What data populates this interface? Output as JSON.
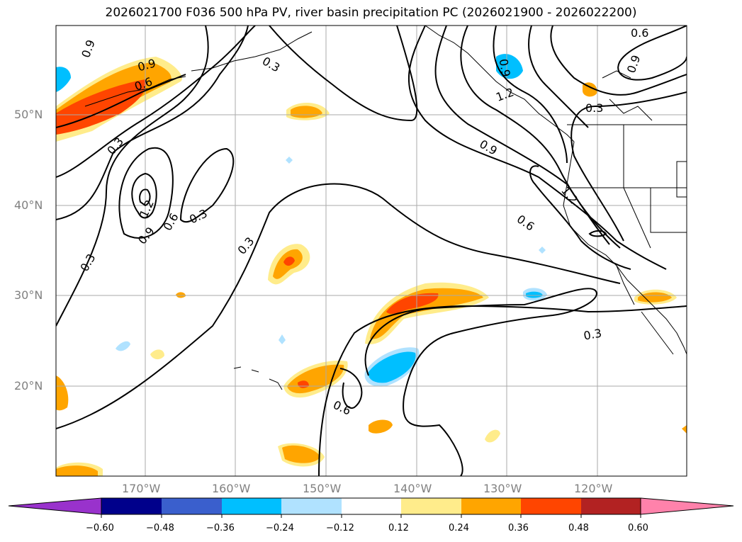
{
  "title": "2026021700 F036 500 hPa PV, river basin precipitation PC (2026021900 - 2026022200)",
  "lat_labels": [
    "50°N",
    "40°N",
    "30°N",
    "20°N"
  ],
  "lon_labels": [
    "170°W",
    "160°W",
    "150°W",
    "140°W",
    "130°W",
    "120°W"
  ],
  "colorbar": {
    "ticks": [
      "−0.60",
      "−0.48",
      "−0.36",
      "−0.24",
      "−0.12",
      "0.12",
      "0.24",
      "0.36",
      "0.48",
      "0.60"
    ],
    "colors": [
      "#9932cc",
      "#00008b",
      "#3a5fcd",
      "#00bfff",
      "#b0e2ff",
      "#ffffff",
      "#ffec8b",
      "#ffa500",
      "#ff4500",
      "#b22222",
      "#ff82ab"
    ]
  },
  "contour_labels": [
    "0.3",
    "0.6",
    "0.9",
    "1.2"
  ],
  "fill_colors": {
    "light_yellow": "#ffec8b",
    "orange": "#ffa500",
    "red_orange": "#ff4500",
    "light_blue": "#b0e2ff",
    "deep_sky_blue": "#00bfff"
  }
}
